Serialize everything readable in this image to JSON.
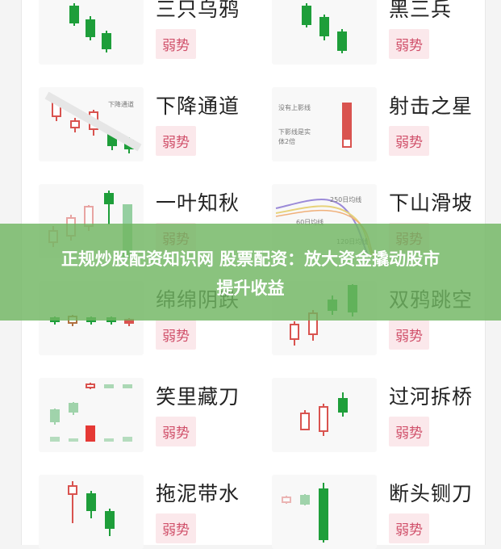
{
  "colors": {
    "bear_green": "#1e9e3a",
    "bull_red": "#d9534f",
    "badge_bg": "#fbe8eb",
    "badge_text": "#d0506a",
    "banner": "#70b662"
  },
  "patterns": [
    {
      "title": "三只乌鸦",
      "badge": "弱势"
    },
    {
      "title": "黑三兵",
      "badge": "弱势"
    },
    {
      "title": "下降通道",
      "badge": "弱势",
      "labels": [
        "下降通道"
      ]
    },
    {
      "title": "射击之星",
      "badge": "弱势",
      "labels": [
        "没有上影线",
        "下影线是实",
        "体2倍"
      ]
    },
    {
      "title": "一叶知秋",
      "badge": "弱势"
    },
    {
      "title": "下山滑坡",
      "badge": "弱势",
      "labels": [
        "250日均线",
        "60日均线",
        "120日均线"
      ]
    },
    {
      "title": "绵绵阴跌",
      "badge": "弱势"
    },
    {
      "title": "双鸦跳空",
      "badge": "弱势"
    },
    {
      "title": "笑里藏刀",
      "badge": "弱势"
    },
    {
      "title": "过河拆桥",
      "badge": "弱势"
    },
    {
      "title": "拖泥带水",
      "badge": "弱势"
    },
    {
      "title": "断头铡刀",
      "badge": "弱势"
    }
  ],
  "banner": {
    "line1": "正规炒股配资知识网 股票配资：放大资金撬动股市",
    "line2": "提升收益"
  }
}
